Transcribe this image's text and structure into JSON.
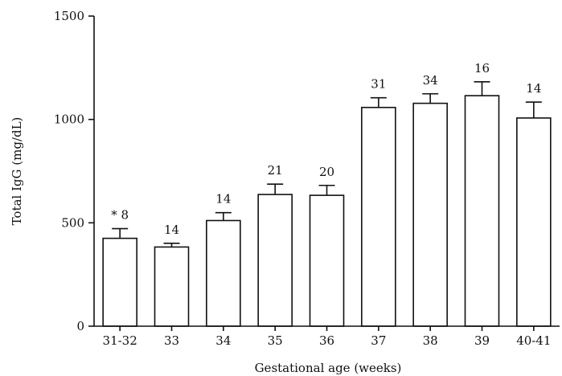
{
  "chart_data": {
    "type": "bar",
    "categories": [
      "31-32",
      "33",
      "34",
      "35",
      "36",
      "37",
      "38",
      "39",
      "40-41"
    ],
    "values": [
      425,
      383,
      511,
      637,
      633,
      1058,
      1078,
      1115,
      1007
    ],
    "errors": [
      47,
      18,
      38,
      50,
      48,
      47,
      46,
      67,
      77
    ],
    "bar_labels": [
      "* 8",
      "14",
      "14",
      "21",
      "20",
      "31",
      "34",
      "16",
      "14"
    ],
    "xlabel": "Gestational age (weeks)",
    "ylabel": "Total IgG (mg/dL)",
    "ylim": [
      0,
      1500
    ],
    "yticks": [
      "0",
      "500",
      "1000",
      "1500"
    ],
    "grid": false,
    "legend": "none"
  }
}
